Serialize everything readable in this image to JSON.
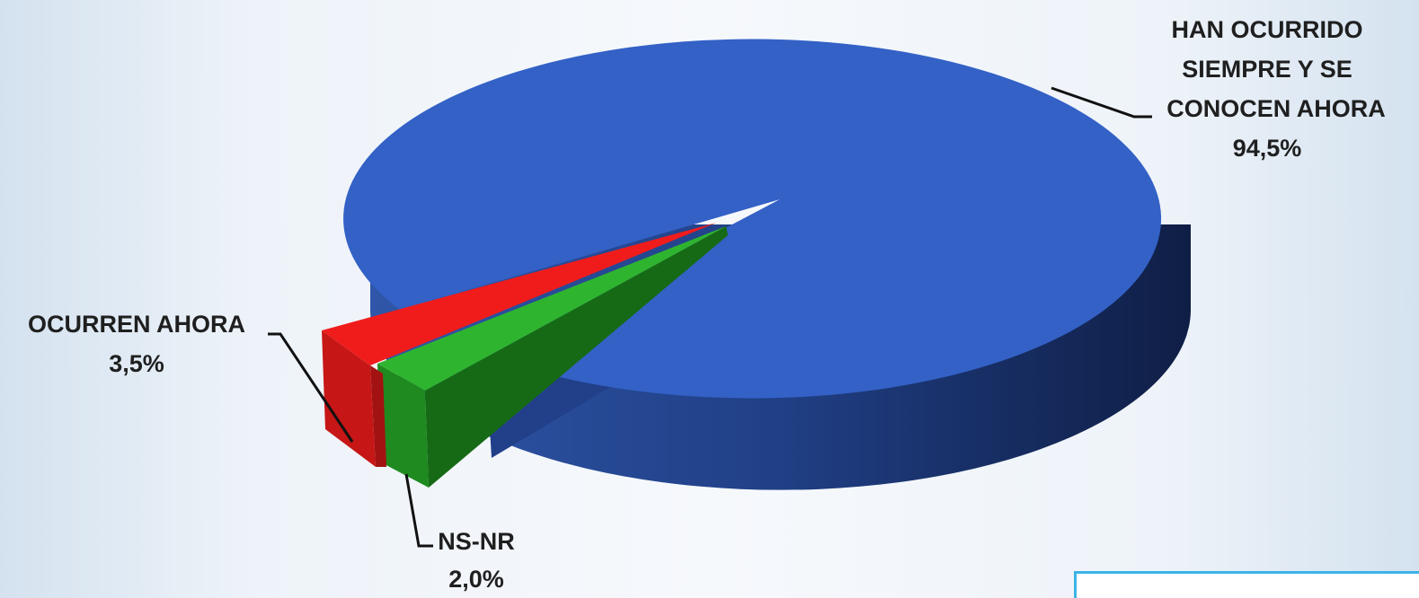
{
  "chart_data": {
    "type": "pie",
    "style": "3d-exploded",
    "slices": [
      {
        "label": "HAN OCURRIDO SIEMPRE Y SE CONOCEN AHORA",
        "label_lines": [
          "HAN OCURRIDO",
          "SIEMPRE Y SE",
          "CONOCEN AHORA"
        ],
        "value": 94.5,
        "value_label": "94,5%",
        "color": "#3361c6",
        "side_color": "#1f3a7a"
      },
      {
        "label": "NS-NR",
        "label_lines": [
          "NS-NR"
        ],
        "value": 2.0,
        "value_label": "2,0%",
        "color": "#2fb42f",
        "side_color": "#1c7a1c"
      },
      {
        "label": "OCURREN AHORA",
        "label_lines": [
          "OCURREN AHORA"
        ],
        "value": 3.5,
        "value_label": "3,5%",
        "color": "#f01c1c",
        "side_color": "#a31212"
      }
    ],
    "legend": "none",
    "title": ""
  }
}
